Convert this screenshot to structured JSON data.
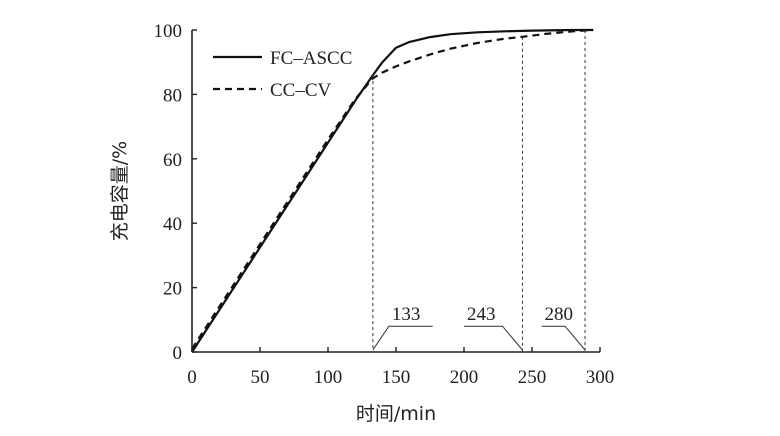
{
  "chart_data": {
    "type": "line",
    "title": "",
    "xlabel": "时间/min",
    "ylabel": "充电容量/%",
    "xlim": [
      0,
      300
    ],
    "ylim": [
      0,
      100
    ],
    "xticks": [
      0,
      50,
      100,
      150,
      200,
      250,
      300
    ],
    "yticks": [
      0,
      20,
      40,
      60,
      80,
      100
    ],
    "grid": false,
    "legend_position": "top-left",
    "series": [
      {
        "name": "FC–ASCC",
        "style": "solid",
        "x": [
          0,
          20,
          40,
          60,
          80,
          100,
          120,
          133,
          140,
          150,
          160,
          175,
          190,
          210,
          230,
          250,
          280,
          295
        ],
        "y": [
          0,
          13,
          26,
          39,
          52,
          65,
          78,
          86,
          90,
          94.5,
          96.3,
          97.8,
          98.7,
          99.3,
          99.6,
          99.8,
          100,
          100
        ]
      },
      {
        "name": "CC–CV",
        "style": "dashed",
        "x": [
          0,
          20,
          40,
          60,
          80,
          100,
          120,
          133,
          140,
          150,
          160,
          175,
          190,
          210,
          230,
          243,
          260,
          280,
          295
        ],
        "y": [
          1,
          14,
          27,
          40,
          53,
          66,
          78.5,
          85,
          86.8,
          88.7,
          90.3,
          92.4,
          94.2,
          96,
          97.3,
          97.9,
          98.8,
          99.6,
          100
        ]
      }
    ],
    "annotations": [
      {
        "label": "133",
        "x": 133
      },
      {
        "label": "243",
        "x": 243
      },
      {
        "label": "280",
        "x": 289
      }
    ]
  }
}
